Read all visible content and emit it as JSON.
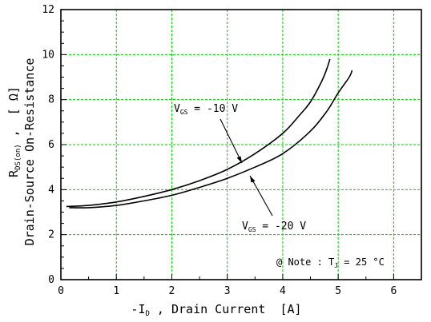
{
  "chart_data": {
    "type": "line",
    "xlabel_main": "-I",
    "xlabel_sub": "D",
    "xlabel_rest": " , Drain Current  [A]",
    "ylabel_line1_main": "R",
    "ylabel_line1_sub": "DS(on)",
    "ylabel_line1_rest": " ,  [ Ω]",
    "ylabel_line2": "Drain-Source On-Resistance",
    "xlim": [
      0,
      6.5
    ],
    "ylim": [
      0,
      12
    ],
    "x_ticks": [
      "0",
      "1",
      "2",
      "3",
      "4",
      "5",
      "6"
    ],
    "y_ticks": [
      "0",
      "2",
      "4",
      "6",
      "8",
      "10",
      "12"
    ],
    "grid": true,
    "grid_color": "#00cc00",
    "series": [
      {
        "name_main": "V",
        "name_sub": "GS",
        "name_rest": " = -10 V",
        "x": [
          0.1,
          0.5,
          1.0,
          1.5,
          2.0,
          2.5,
          3.0,
          3.5,
          4.0,
          4.3,
          4.5,
          4.7,
          4.8,
          4.85
        ],
        "y": [
          3.25,
          3.3,
          3.45,
          3.7,
          4.0,
          4.4,
          4.9,
          5.6,
          6.5,
          7.3,
          7.9,
          8.8,
          9.4,
          9.8
        ]
      },
      {
        "name_main": "V",
        "name_sub": "GS",
        "name_rest": " = -20 V",
        "x": [
          0.15,
          0.5,
          1.0,
          1.5,
          2.0,
          2.5,
          3.0,
          3.5,
          4.0,
          4.5,
          4.8,
          5.0,
          5.2,
          5.25
        ],
        "y": [
          3.2,
          3.2,
          3.3,
          3.5,
          3.75,
          4.1,
          4.5,
          5.0,
          5.6,
          6.6,
          7.5,
          8.3,
          9.0,
          9.3
        ]
      }
    ],
    "annotation": {
      "prefix": "@ Note : T",
      "sub": "J",
      "suffix": " = 25 °C"
    }
  }
}
